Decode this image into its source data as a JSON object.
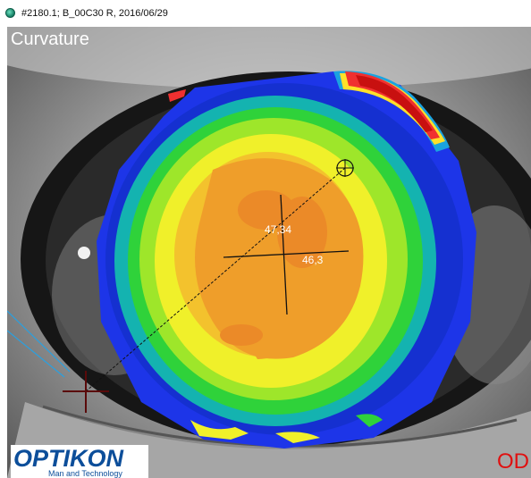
{
  "window": {
    "title": "#2180.1; B_00C30 R, 2016/06/29",
    "app_icon": "optikon-app-icon"
  },
  "map": {
    "label": "Curvature",
    "eye": "OD",
    "k_steep": "47,34",
    "k_flat": "46,3"
  },
  "logo": {
    "brand": "OPTIKON",
    "tagline": "Man and Technology"
  },
  "colors": {
    "steep_text": "#ffffff",
    "eye_label": "#e01010",
    "brand": "#0c4e9a"
  }
}
